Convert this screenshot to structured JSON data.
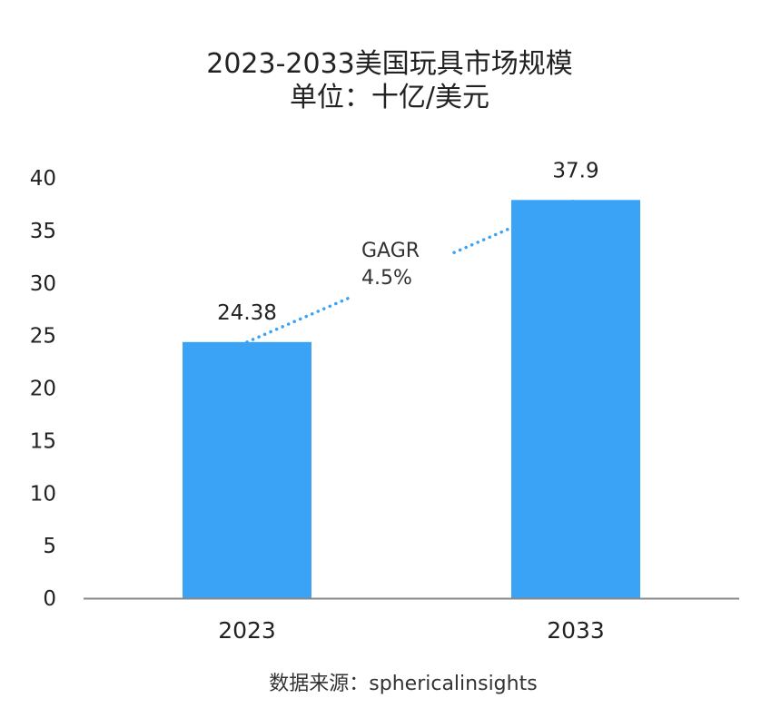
{
  "chart_data": {
    "type": "bar",
    "title_line1": "2023-2033美国玩具市场规模",
    "title_line2": "单位：十亿/美元",
    "categories": [
      "2023",
      "2033"
    ],
    "values": [
      24.38,
      37.9
    ],
    "value_labels": [
      "24.38",
      "37.9"
    ],
    "yticks": [
      "0",
      "5",
      "10",
      "15",
      "20",
      "25",
      "30",
      "35",
      "40"
    ],
    "ylim": [
      0,
      40
    ],
    "annotation": {
      "line1": "GAGR",
      "line2": "4.5%"
    },
    "bar_color": "#3aa3f5",
    "dot_color": "#3aa3f5",
    "axis_color": "#888888",
    "source": "数据来源：sphericalinsights"
  }
}
